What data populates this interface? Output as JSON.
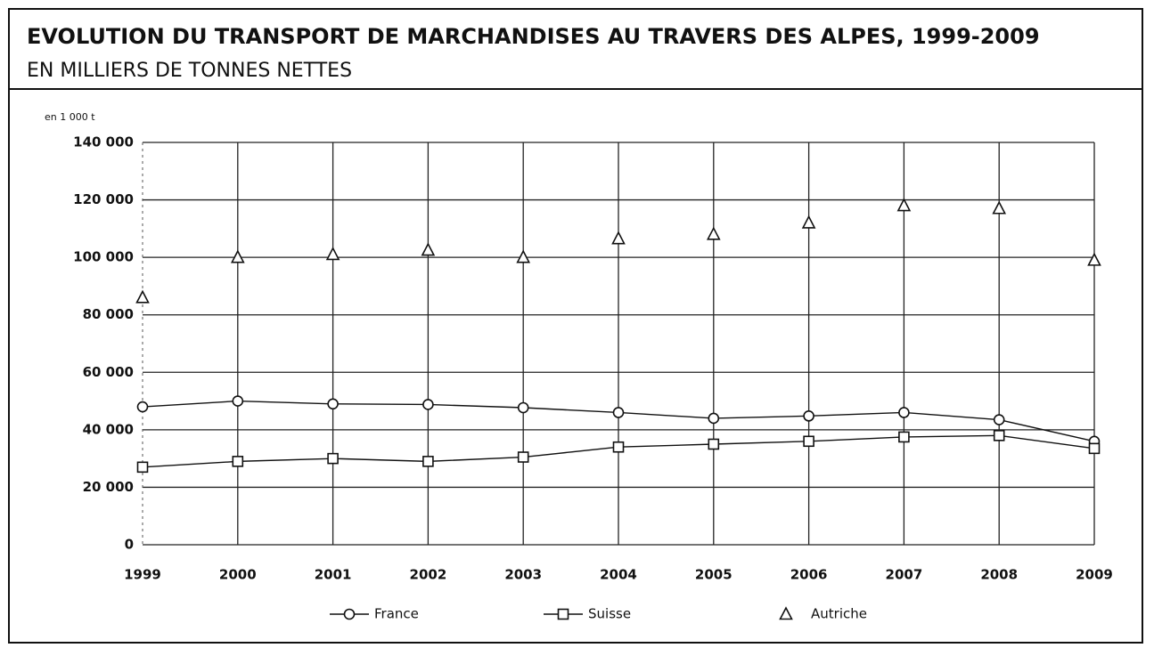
{
  "chart_data": {
    "type": "line",
    "title": "EVOLUTION DU TRANSPORT DE MARCHANDISES AU TRAVERS DES ALPES, 1999-2009",
    "subtitle": "EN MILLIERS DE TONNES NETTES",
    "y_axis_label": "en 1 000 t",
    "categories": [
      "1999",
      "2000",
      "2001",
      "2002",
      "2003",
      "2004",
      "2005",
      "2006",
      "2007",
      "2008",
      "2009"
    ],
    "series": [
      {
        "name": "France",
        "color": "#111111",
        "marker": "circle",
        "line": true,
        "values": [
          48000,
          50000,
          49000,
          48800,
          47700,
          46000,
          44000,
          44800,
          46000,
          43500,
          36000
        ]
      },
      {
        "name": "Suisse",
        "color": "#111111",
        "marker": "square",
        "line": true,
        "values": [
          27000,
          29000,
          30000,
          29000,
          30500,
          34000,
          35000,
          36000,
          37500,
          38000,
          33500
        ]
      },
      {
        "name": "Autriche",
        "color": "#111111",
        "marker": "triangle",
        "line": false,
        "values": [
          86000,
          100000,
          101000,
          102500,
          100000,
          106500,
          108000,
          112000,
          118000,
          117000,
          99000
        ]
      }
    ],
    "ylim": [
      0,
      140000
    ],
    "yticks": [
      0,
      {
        "value": 20000,
        "label": "20 000"
      },
      {
        "value": 40000,
        "label": "40 000"
      },
      {
        "value": 60000,
        "label": "60 000"
      },
      {
        "value": 80000,
        "label": "80 000"
      },
      {
        "value": 100000,
        "label": "100 000"
      },
      {
        "value": 120000,
        "label": "120 000"
      },
      {
        "value": 140000,
        "label": "140 000"
      }
    ],
    "grid": true,
    "vertical_grid": true,
    "legend": "bottom"
  }
}
